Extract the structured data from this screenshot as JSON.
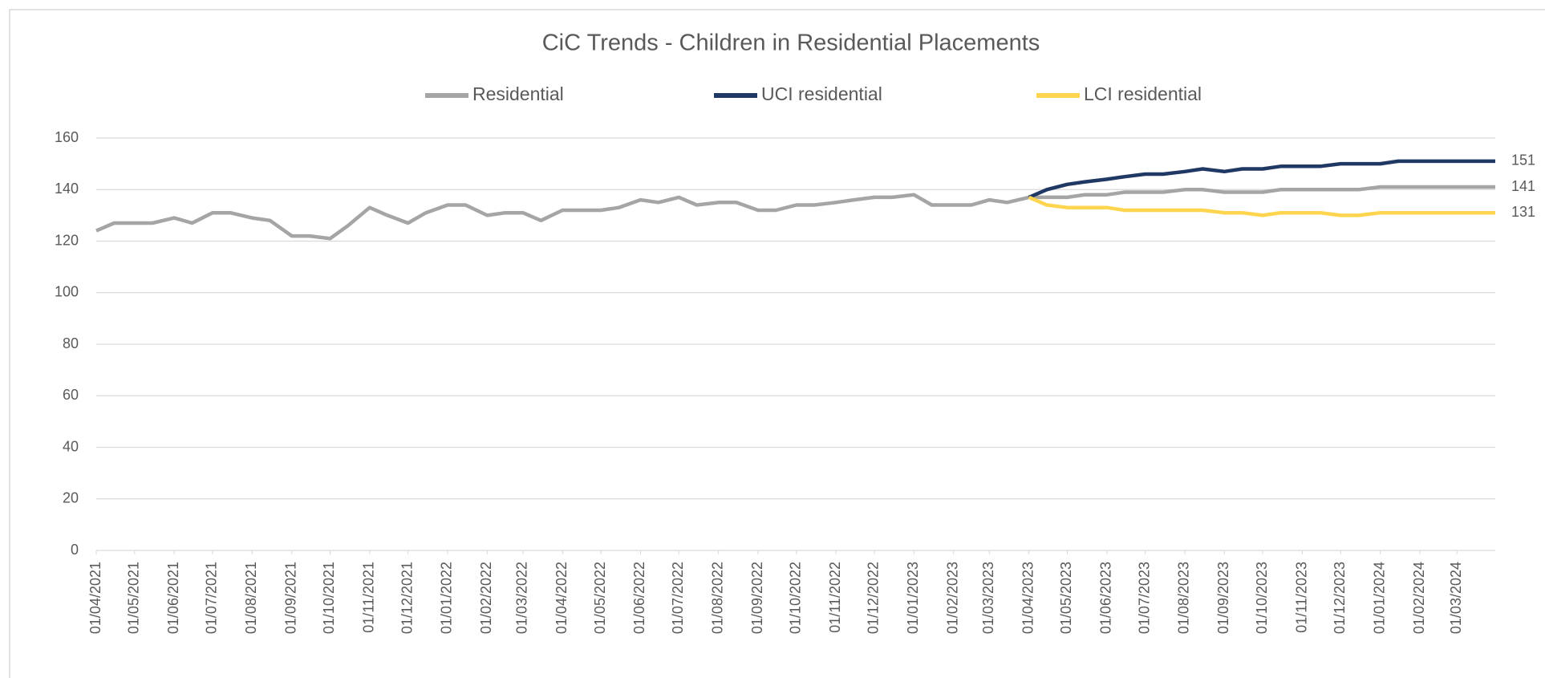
{
  "chart_data": {
    "type": "line",
    "title": "CiC Trends - Children in Residential Placements",
    "x": [
      "01/04/2021",
      "15/04/2021",
      "01/05/2021",
      "15/05/2021",
      "01/06/2021",
      "15/06/2021",
      "01/07/2021",
      "15/07/2021",
      "01/08/2021",
      "15/08/2021",
      "01/09/2021",
      "15/09/2021",
      "01/10/2021",
      "15/10/2021",
      "01/11/2021",
      "15/11/2021",
      "01/12/2021",
      "15/12/2021",
      "01/01/2022",
      "15/01/2022",
      "01/02/2022",
      "15/02/2022",
      "01/03/2022",
      "15/03/2022",
      "01/04/2022",
      "15/04/2022",
      "01/05/2022",
      "15/05/2022",
      "01/06/2022",
      "15/06/2022",
      "01/07/2022",
      "15/07/2022",
      "01/08/2022",
      "15/08/2022",
      "01/09/2022",
      "15/09/2022",
      "01/10/2022",
      "15/10/2022",
      "01/11/2022",
      "15/11/2022",
      "01/12/2022",
      "15/12/2022",
      "01/01/2023",
      "15/01/2023",
      "01/02/2023",
      "15/02/2023",
      "01/03/2023",
      "15/03/2023",
      "01/04/2023",
      "15/04/2023",
      "01/05/2023",
      "15/05/2023",
      "01/06/2023",
      "15/06/2023",
      "01/07/2023",
      "15/07/2023",
      "01/08/2023",
      "15/08/2023",
      "01/09/2023",
      "15/09/2023",
      "01/10/2023",
      "15/10/2023",
      "01/11/2023",
      "15/11/2023",
      "01/12/2023",
      "15/12/2023",
      "01/01/2024",
      "15/01/2024",
      "01/02/2024",
      "15/02/2024",
      "01/03/2024",
      "15/03/2024",
      "31/03/2024"
    ],
    "series": [
      {
        "name": "Residential",
        "color": "#a5a5a5",
        "values": [
          124,
          127,
          127,
          127,
          129,
          127,
          131,
          131,
          129,
          128,
          122,
          122,
          121,
          126,
          133,
          130,
          127,
          131,
          134,
          134,
          130,
          131,
          131,
          128,
          132,
          132,
          132,
          133,
          136,
          135,
          137,
          134,
          135,
          135,
          132,
          132,
          134,
          134,
          135,
          136,
          137,
          137,
          138,
          134,
          134,
          134,
          136,
          135,
          137,
          137,
          137,
          138,
          138,
          139,
          139,
          139,
          140,
          140,
          139,
          139,
          139,
          140,
          140,
          140,
          140,
          140,
          141,
          141,
          141,
          141,
          141,
          141,
          141
        ]
      },
      {
        "name": "UCI residential",
        "color": "#203864",
        "values": [
          null,
          null,
          null,
          null,
          null,
          null,
          null,
          null,
          null,
          null,
          null,
          null,
          null,
          null,
          null,
          null,
          null,
          null,
          null,
          null,
          null,
          null,
          null,
          null,
          null,
          null,
          null,
          null,
          null,
          null,
          null,
          null,
          null,
          null,
          null,
          null,
          null,
          null,
          null,
          null,
          null,
          null,
          null,
          null,
          null,
          null,
          null,
          null,
          137,
          140,
          142,
          143,
          144,
          145,
          146,
          146,
          147,
          148,
          147,
          148,
          148,
          149,
          149,
          149,
          150,
          150,
          150,
          151,
          151,
          151,
          151,
          151,
          151
        ]
      },
      {
        "name": "LCI residential",
        "color": "#ffd54f",
        "values": [
          null,
          null,
          null,
          null,
          null,
          null,
          null,
          null,
          null,
          null,
          null,
          null,
          null,
          null,
          null,
          null,
          null,
          null,
          null,
          null,
          null,
          null,
          null,
          null,
          null,
          null,
          null,
          null,
          null,
          null,
          null,
          null,
          null,
          null,
          null,
          null,
          null,
          null,
          null,
          null,
          null,
          null,
          null,
          null,
          null,
          null,
          null,
          null,
          137,
          134,
          133,
          133,
          133,
          132,
          132,
          132,
          132,
          132,
          131,
          131,
          130,
          131,
          131,
          131,
          130,
          130,
          131,
          131,
          131,
          131,
          131,
          131,
          131
        ]
      }
    ],
    "xlim": [
      "01/04/2021",
      "31/03/2024"
    ],
    "xticks": [
      "01/04/2021",
      "01/05/2021",
      "01/06/2021",
      "01/07/2021",
      "01/08/2021",
      "01/09/2021",
      "01/10/2021",
      "01/11/2021",
      "01/12/2021",
      "01/01/2022",
      "01/02/2022",
      "01/03/2022",
      "01/04/2022",
      "01/05/2022",
      "01/06/2022",
      "01/07/2022",
      "01/08/2022",
      "01/09/2022",
      "01/10/2022",
      "01/11/2022",
      "01/12/2022",
      "01/01/2023",
      "01/02/2023",
      "01/03/2023",
      "01/04/2023",
      "01/05/2023",
      "01/06/2023",
      "01/07/2023",
      "01/08/2023",
      "01/09/2023",
      "01/10/2023",
      "01/11/2023",
      "01/12/2023",
      "01/01/2024",
      "01/02/2024",
      "01/03/2024"
    ],
    "ylim": [
      0,
      160
    ],
    "yticks": [
      0,
      20,
      40,
      60,
      80,
      100,
      120,
      140,
      160
    ],
    "grid": true,
    "legend": "top"
  }
}
